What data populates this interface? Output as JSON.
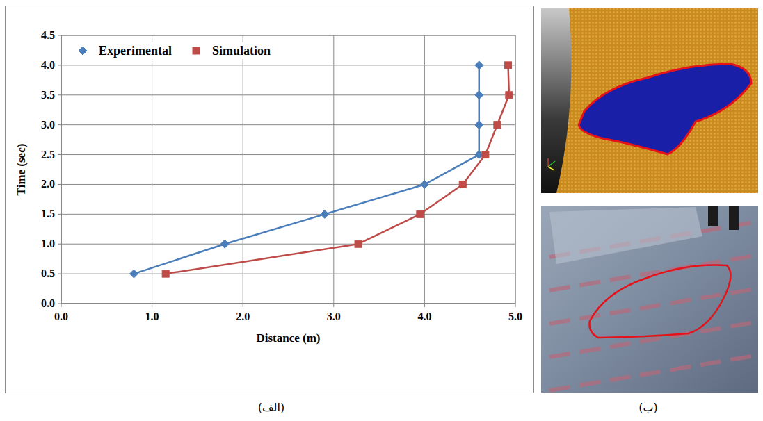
{
  "chart_data": {
    "type": "line",
    "x_label": "Distance (m)",
    "y_label": "Time (sec)",
    "xlim": [
      0,
      5
    ],
    "ylim": [
      0,
      4.5
    ],
    "xticks": [
      {
        "value": 0,
        "label": "0.0"
      },
      {
        "value": 1,
        "label": "1.0"
      },
      {
        "value": 2,
        "label": "2.0"
      },
      {
        "value": 3,
        "label": "3.0"
      },
      {
        "value": 4,
        "label": "4.0"
      },
      {
        "value": 5,
        "label": "5.0"
      }
    ],
    "yticks": [
      {
        "value": 0,
        "label": "0.0"
      },
      {
        "value": 0.5,
        "label": "0.5"
      },
      {
        "value": 1,
        "label": "1.0"
      },
      {
        "value": 1.5,
        "label": "1.5"
      },
      {
        "value": 2,
        "label": "2.0"
      },
      {
        "value": 2.5,
        "label": "2.5"
      },
      {
        "value": 3,
        "label": "3.0"
      },
      {
        "value": 3.5,
        "label": "3.5"
      },
      {
        "value": 4,
        "label": "4.0"
      },
      {
        "value": 4.5,
        "label": "4.5"
      }
    ],
    "grid": true,
    "legend": "upper left",
    "series": [
      {
        "name": "Experimental",
        "color": "#4a7ebb",
        "marker": "diamond",
        "x": [
          0.8,
          1.8,
          2.9,
          4.0,
          4.6,
          4.6,
          4.6,
          4.6
        ],
        "values": [
          0.5,
          1.0,
          1.5,
          2.0,
          2.5,
          3.0,
          3.5,
          4.0
        ]
      },
      {
        "name": "Simulation",
        "color": "#be4b48",
        "marker": "square",
        "x": [
          1.15,
          3.27,
          3.95,
          4.42,
          4.67,
          4.8,
          4.93,
          4.92
        ],
        "values": [
          0.5,
          1.0,
          1.5,
          2.0,
          2.5,
          3.0,
          3.5,
          4.0
        ]
      }
    ]
  },
  "captions": [
    "(الف)",
    "(ب)"
  ]
}
